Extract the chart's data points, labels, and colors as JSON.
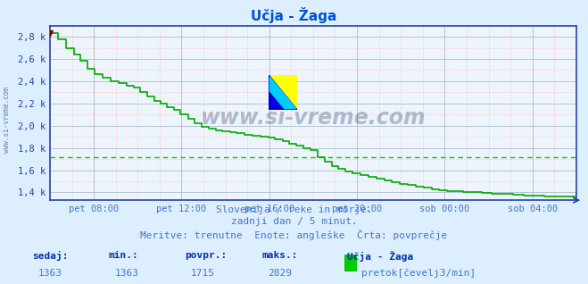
{
  "title": "Učja - Žaga",
  "bg_color": "#ddeeff",
  "plot_bg_color": "#eef4fc",
  "grid_color_major": "#aabbcc",
  "grid_color_minor": "#ffaaaa",
  "line_color": "#00aa00",
  "avg_line_color": "#00cc00",
  "axis_color": "#2244aa",
  "title_color": "#0055cc",
  "xlabel_color": "#4477cc",
  "ylabel_labels": [
    "1,4 k",
    "1,6 k",
    "1,8 k",
    "2,0 k",
    "2,2 k",
    "2,4 k",
    "2,6 k",
    "2,8 k"
  ],
  "ylabel_values": [
    1400,
    1600,
    1800,
    2000,
    2200,
    2400,
    2600,
    2800
  ],
  "ymin": 1330,
  "ymax": 2900,
  "avg_value": 1715,
  "subtitle1": "Slovenija / reke in morje.",
  "subtitle2": "zadnji dan / 5 minut.",
  "subtitle3": "Meritve: trenutne  Enote: angleške  Črta: povprečje",
  "footer_col_labels": [
    "sedaj:",
    "min.:",
    "povpr.:",
    "maks.:",
    "Učja - Žaga"
  ],
  "footer_col_values": [
    "1363",
    "1363",
    "1715",
    "2829"
  ],
  "footer_unit": "pretok[čevelj3/min]",
  "legend_color": "#00cc00",
  "watermark": "www.si-vreme.com",
  "watermark_color": "#1a3a6a",
  "x_tick_labels": [
    "pet 08:00",
    "pet 12:00",
    "pet 16:00",
    "pet 20:00",
    "sob 00:00",
    "sob 04:00"
  ],
  "x_tick_positions": [
    0.0833,
    0.25,
    0.4167,
    0.5833,
    0.75,
    0.9167
  ],
  "data_x": [
    0.0,
    0.005,
    0.015,
    0.03,
    0.045,
    0.058,
    0.072,
    0.085,
    0.1,
    0.115,
    0.13,
    0.145,
    0.16,
    0.172,
    0.185,
    0.198,
    0.21,
    0.222,
    0.235,
    0.248,
    0.262,
    0.275,
    0.288,
    0.302,
    0.315,
    0.328,
    0.342,
    0.355,
    0.37,
    0.385,
    0.4,
    0.415,
    0.428,
    0.442,
    0.455,
    0.468,
    0.482,
    0.495,
    0.508,
    0.522,
    0.535,
    0.548,
    0.562,
    0.575,
    0.59,
    0.605,
    0.62,
    0.635,
    0.65,
    0.665,
    0.68,
    0.695,
    0.71,
    0.725,
    0.74,
    0.755,
    0.77,
    0.785,
    0.8,
    0.82,
    0.84,
    0.86,
    0.88,
    0.9,
    0.92,
    0.94,
    0.96,
    0.98,
    1.0
  ],
  "data_y": [
    2829,
    2829,
    2780,
    2700,
    2640,
    2580,
    2510,
    2460,
    2430,
    2400,
    2380,
    2360,
    2340,
    2300,
    2260,
    2220,
    2200,
    2170,
    2140,
    2100,
    2060,
    2020,
    1990,
    1970,
    1960,
    1950,
    1940,
    1930,
    1920,
    1910,
    1900,
    1890,
    1880,
    1860,
    1840,
    1820,
    1800,
    1780,
    1720,
    1680,
    1640,
    1610,
    1590,
    1570,
    1555,
    1540,
    1525,
    1510,
    1495,
    1480,
    1465,
    1450,
    1440,
    1430,
    1420,
    1415,
    1410,
    1405,
    1400,
    1395,
    1390,
    1385,
    1380,
    1375,
    1370,
    1367,
    1365,
    1363,
    1363
  ]
}
